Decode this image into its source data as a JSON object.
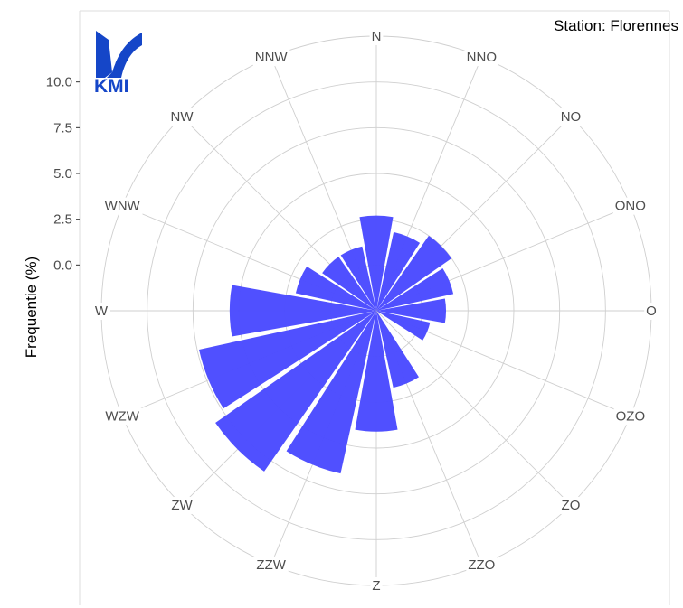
{
  "chart_data": {
    "type": "bar",
    "subtype": "polar-rose",
    "station": "Station: Florennes",
    "ylabel": "Frequentie (%)",
    "ylim": [
      -2.5,
      12.5
    ],
    "yticks": [
      "0.0",
      "2.5",
      "5.0",
      "7.5",
      "10.0"
    ],
    "ytick_values": [
      0,
      2.5,
      5,
      7.5,
      10
    ],
    "grid": true,
    "bar_color": "#4d4dff",
    "categories": [
      "N",
      "NNO",
      "NO",
      "ONO",
      "O",
      "OZO",
      "ZO",
      "ZZO",
      "Z",
      "ZZW",
      "ZW",
      "WZW",
      "W",
      "WNW",
      "NW",
      "NNW"
    ],
    "series": [
      {
        "values": [
          2.7,
          1.9,
          2.5,
          1.8,
          1.3,
          0.5,
          0.0,
          1.8,
          4.1,
          6.6,
          8.2,
          7.4,
          5.5,
          2.0,
          1.1,
          1.1
        ]
      }
    ]
  },
  "logo": {
    "text": "KMI",
    "color": "#1546c8"
  }
}
